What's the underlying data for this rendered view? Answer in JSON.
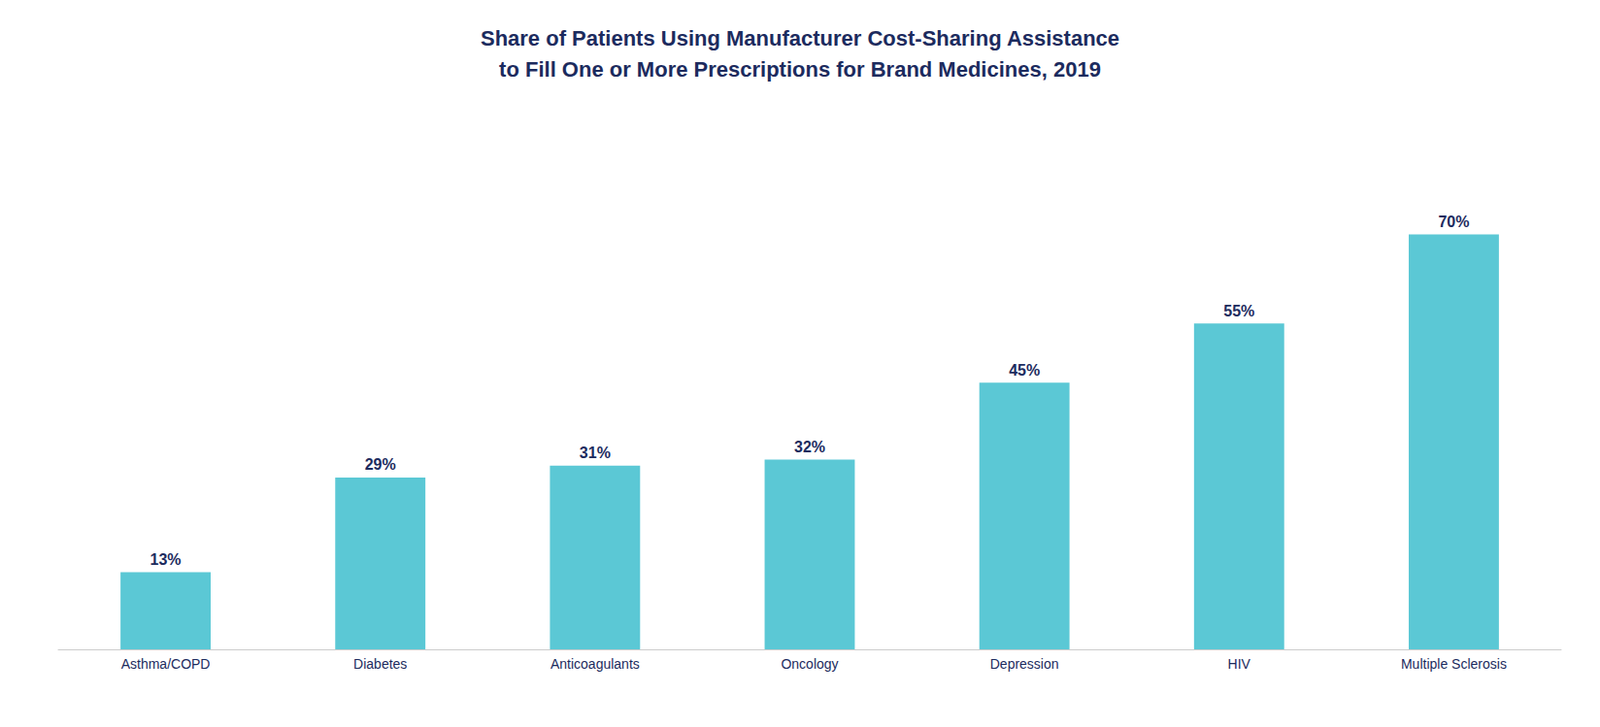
{
  "chart_data": {
    "type": "bar",
    "title": "Share of Patients Using Manufacturer Cost-Sharing Assistance\nto Fill One or More Prescriptions for Brand Medicines, 2019",
    "categories": [
      "Asthma/COPD",
      "Diabetes",
      "Anticoagulants",
      "Oncology",
      "Depression",
      "HIV",
      "Multiple Sclerosis"
    ],
    "values": [
      13,
      29,
      31,
      32,
      45,
      55,
      70
    ],
    "value_labels": [
      "13%",
      "29%",
      "31%",
      "32%",
      "45%",
      "55%",
      "70%"
    ],
    "color": "#5BC8D5",
    "ylim": [
      0,
      85
    ],
    "grid": false,
    "data_labels": true,
    "tick_labels": "x"
  }
}
